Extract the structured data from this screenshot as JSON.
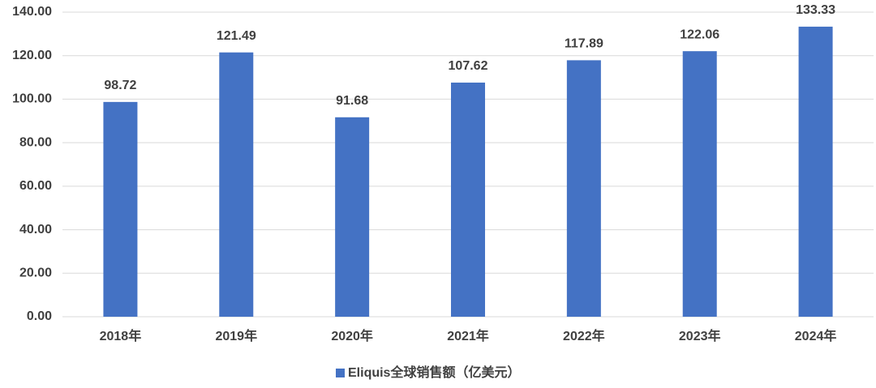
{
  "chart_data": {
    "type": "bar",
    "categories": [
      "2018年",
      "2019年",
      "2020年",
      "2021年",
      "2022年",
      "2023年",
      "2024年"
    ],
    "series": [
      {
        "name": "Eliquis全球销售额（亿美元）",
        "color": "#4472c4",
        "values": [
          98.72,
          121.49,
          91.68,
          107.62,
          117.89,
          122.06,
          133.33
        ]
      }
    ],
    "ylim": [
      0,
      140
    ],
    "yticks": [
      {
        "value": 0,
        "label": "0.00"
      },
      {
        "value": 20,
        "label": "20.00"
      },
      {
        "value": 40,
        "label": "40.00"
      },
      {
        "value": 60,
        "label": "60.00"
      },
      {
        "value": 80,
        "label": "80.00"
      },
      {
        "value": 100,
        "label": "100.00"
      },
      {
        "value": 120,
        "label": "120.00"
      },
      {
        "value": 140,
        "label": "140.00"
      }
    ],
    "grid": true
  }
}
